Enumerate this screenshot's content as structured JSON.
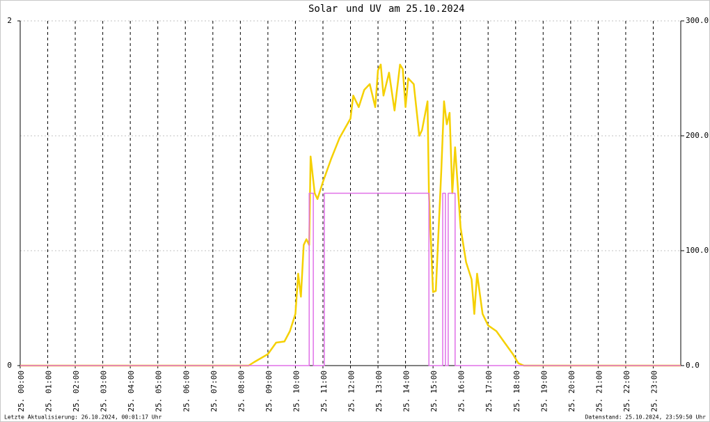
{
  "chart_data": {
    "type": "line",
    "title_words": [
      "und",
      "am 25.10.2024"
    ],
    "footer_left": "Letzte Aktualisierung: 26.10.2024, 00:01:17 Uhr",
    "footer_right": "Datenstand: 25.10.2024, 23:59:50 Uhr",
    "xlim": [
      0,
      24
    ],
    "xticks": [
      {
        "value": 0,
        "label": "25. 00:00"
      },
      {
        "value": 1,
        "label": "25. 01:00"
      },
      {
        "value": 2,
        "label": "25. 02:00"
      },
      {
        "value": 3,
        "label": "25. 03:00"
      },
      {
        "value": 4,
        "label": "25. 04:00"
      },
      {
        "value": 5,
        "label": "25. 05:00"
      },
      {
        "value": 6,
        "label": "25. 06:00"
      },
      {
        "value": 7,
        "label": "25. 07:00"
      },
      {
        "value": 8,
        "label": "25. 08:00"
      },
      {
        "value": 9,
        "label": "25. 09:00"
      },
      {
        "value": 10,
        "label": "25. 10:00"
      },
      {
        "value": 11,
        "label": "25. 11:00"
      },
      {
        "value": 12,
        "label": "25. 12:00"
      },
      {
        "value": 13,
        "label": "25. 13:00"
      },
      {
        "value": 14,
        "label": "25. 14:00"
      },
      {
        "value": 15,
        "label": "25. 15:00"
      },
      {
        "value": 16,
        "label": "25. 16:00"
      },
      {
        "value": 17,
        "label": "25. 17:00"
      },
      {
        "value": 18,
        "label": "25. 18:00"
      },
      {
        "value": 19,
        "label": "25. 19:00"
      },
      {
        "value": 20,
        "label": "25. 20:00"
      },
      {
        "value": 21,
        "label": "25. 21:00"
      },
      {
        "value": 22,
        "label": "25. 22:00"
      },
      {
        "value": 23,
        "label": "25. 23:00"
      }
    ],
    "ylim": [
      0,
      2
    ],
    "yticks": [
      0,
      2
    ],
    "y2lim": [
      0,
      300
    ],
    "y2ticks": [
      {
        "value": 0,
        "label": "0.0"
      },
      {
        "value": 100,
        "label": "100.0"
      },
      {
        "value": 200,
        "label": "200.0"
      },
      {
        "value": 300,
        "label": "300.0"
      }
    ],
    "grid": true,
    "series": [
      {
        "name": "Solar",
        "color": "#f5d000",
        "axis": "y2",
        "x": [
          0,
          8.0,
          8.3,
          8.5,
          9.0,
          9.3,
          9.6,
          9.8,
          10.0,
          10.1,
          10.2,
          10.3,
          10.4,
          10.5,
          10.55,
          10.7,
          10.8,
          11.0,
          11.3,
          11.6,
          12.0,
          12.1,
          12.3,
          12.5,
          12.7,
          12.9,
          13.0,
          13.1,
          13.2,
          13.4,
          13.6,
          13.8,
          13.9,
          14.0,
          14.1,
          14.3,
          14.5,
          14.6,
          14.8,
          14.85,
          15.0,
          15.1,
          15.3,
          15.4,
          15.5,
          15.6,
          15.7,
          15.8,
          16.0,
          16.2,
          16.4,
          16.5,
          16.6,
          16.8,
          17.0,
          17.3,
          17.6,
          17.9,
          18.1,
          18.3,
          24
        ],
        "values": [
          0,
          0,
          0,
          3,
          10,
          20,
          21,
          30,
          45,
          80,
          60,
          105,
          110,
          105,
          182,
          150,
          145,
          160,
          180,
          198,
          215,
          235,
          225,
          240,
          245,
          225,
          257,
          262,
          235,
          255,
          222,
          262,
          258,
          225,
          250,
          245,
          200,
          205,
          230,
          150,
          64,
          65,
          170,
          230,
          210,
          220,
          150,
          190,
          120,
          90,
          75,
          45,
          80,
          45,
          35,
          30,
          20,
          10,
          2,
          0,
          0
        ]
      },
      {
        "name": "UV",
        "color": "#e070e8",
        "axis": "y",
        "x": [
          0,
          10.5,
          10.5,
          10.65,
          10.65,
          11.05,
          11.05,
          14.85,
          14.85,
          15.35,
          15.35,
          15.45,
          15.45,
          15.55,
          15.55,
          15.8,
          15.8,
          24
        ],
        "values": [
          0,
          0,
          1,
          1,
          0,
          0,
          1,
          1,
          0,
          0,
          1,
          1,
          0,
          0,
          1,
          1,
          0,
          0
        ]
      }
    ]
  }
}
